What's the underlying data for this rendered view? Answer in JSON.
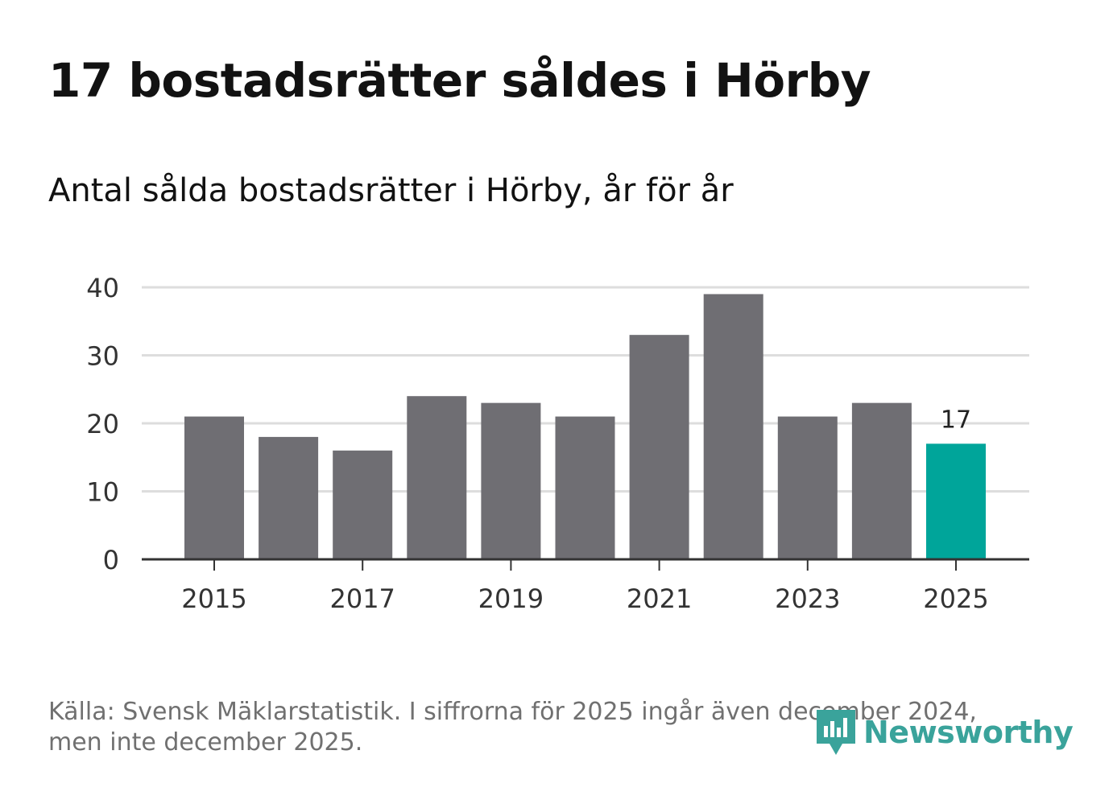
{
  "title": "17 bostadsrätter såldes i Hörby",
  "subtitle": "Antal sålda bostadsrätter i Hörby, år för år",
  "footer": {
    "line1": "Källa: Svensk Mäklarstatistik. I siffrorna för 2025 ingår även december 2024,",
    "line2": "men inte december 2025."
  },
  "logo": {
    "text": "Newsworthy",
    "icon": "newsworthy-bar-chart-icon",
    "color": "#3aa39b"
  },
  "colors": {
    "bar": "#6f6e73",
    "highlight": "#00a59a",
    "grid": "#dddddd",
    "axis": "#333333",
    "text": "#333333"
  },
  "chart_data": {
    "type": "bar",
    "categories": [
      "2015",
      "2016",
      "2017",
      "2018",
      "2019",
      "2020",
      "2021",
      "2022",
      "2023",
      "2024",
      "2025"
    ],
    "values": [
      21,
      18,
      16,
      24,
      23,
      21,
      33,
      39,
      21,
      23,
      17
    ],
    "x_tick_labels": [
      "2015",
      "2017",
      "2019",
      "2021",
      "2023",
      "2025"
    ],
    "y_ticks": [
      0,
      10,
      20,
      30,
      40
    ],
    "ylim": [
      0,
      40
    ],
    "highlight_index": 10,
    "data_labels": [
      {
        "index": 10,
        "text": "17"
      }
    ],
    "grid": true,
    "xlabel": "",
    "ylabel": ""
  }
}
